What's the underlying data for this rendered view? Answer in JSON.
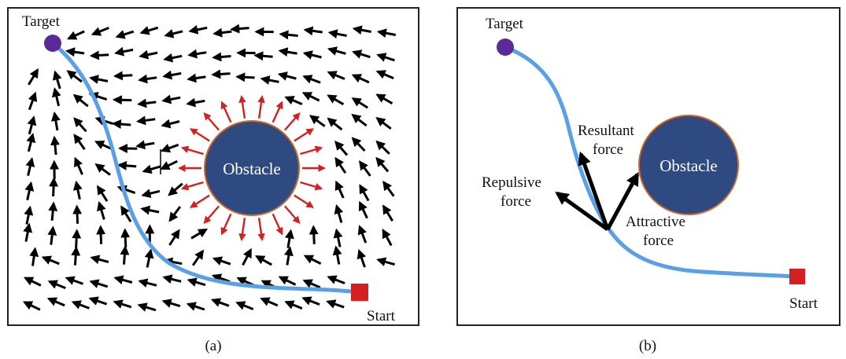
{
  "panel_a": {
    "caption": "(a)",
    "target_label": "Target",
    "start_label": "Start",
    "obstacle_label": "Obstacle"
  },
  "panel_b": {
    "caption": "(b)",
    "target_label": "Target",
    "start_label": "Start",
    "obstacle_label": "Obstacle",
    "resultant_label_line1": "Resultant",
    "resultant_label_line2": "force",
    "repulsive_label_line1": "Repulsive",
    "repulsive_label_line2": "force",
    "attractive_label_line1": "Attractive",
    "attractive_label_line2": "force"
  },
  "colors": {
    "path": "#5aa0e6",
    "target": "#5b2a9a",
    "start": "#d42020",
    "obstacle_fill": "#2f4a80",
    "obstacle_stroke": "#c8682a",
    "repulsive_arrows": "#d42020",
    "field_arrows": "#000000"
  }
}
